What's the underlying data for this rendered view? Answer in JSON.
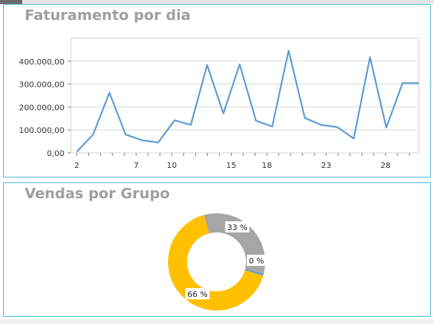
{
  "revenue_panel": {
    "title": "Faturamento por dia"
  },
  "groups_panel": {
    "title": "Vendas por Grupo"
  },
  "colors": {
    "panel_border": "#5bc0de",
    "title": "#9e9e9e",
    "line": "#5b9bd5",
    "donut_gray": "#a6a6a6",
    "donut_yellow": "#ffc000",
    "donut_other": "#5b9bd5"
  },
  "chart_data": [
    {
      "type": "line",
      "title": "",
      "x": [
        2,
        3,
        5,
        7,
        9,
        10,
        12,
        13,
        15,
        16,
        18,
        19,
        20,
        22,
        23,
        24,
        25,
        26,
        27,
        28,
        29,
        30
      ],
      "x_mapped_note_removed": true,
      "series": [
        {
          "values": [
            5000,
            80000,
            262000,
            80000,
            55000,
            45000,
            142000,
            122000,
            383000,
            172000,
            386000,
            140000,
            115000,
            446000,
            152000,
            122000,
            112000,
            62000,
            417000,
            110000,
            304000,
            304000
          ]
        }
      ],
      "xticks": [
        "2",
        "7",
        "10",
        "15",
        "18",
        "23",
        "28"
      ],
      "yticks": [
        "0,00",
        "100.000,00",
        "200.000,00",
        "300.000,00",
        "400.000,00"
      ],
      "ylim": [
        0,
        500000
      ],
      "grid": true,
      "xlabel": "",
      "ylabel": ""
    },
    {
      "type": "pie",
      "variant": "donut",
      "slices": [
        {
          "label": "33 %",
          "value": 33,
          "color": "#a6a6a6"
        },
        {
          "label": "0 %",
          "value": 0.6,
          "color": "#5b9bd5"
        },
        {
          "label": "66 %",
          "value": 66,
          "color": "#ffc000"
        }
      ]
    }
  ]
}
